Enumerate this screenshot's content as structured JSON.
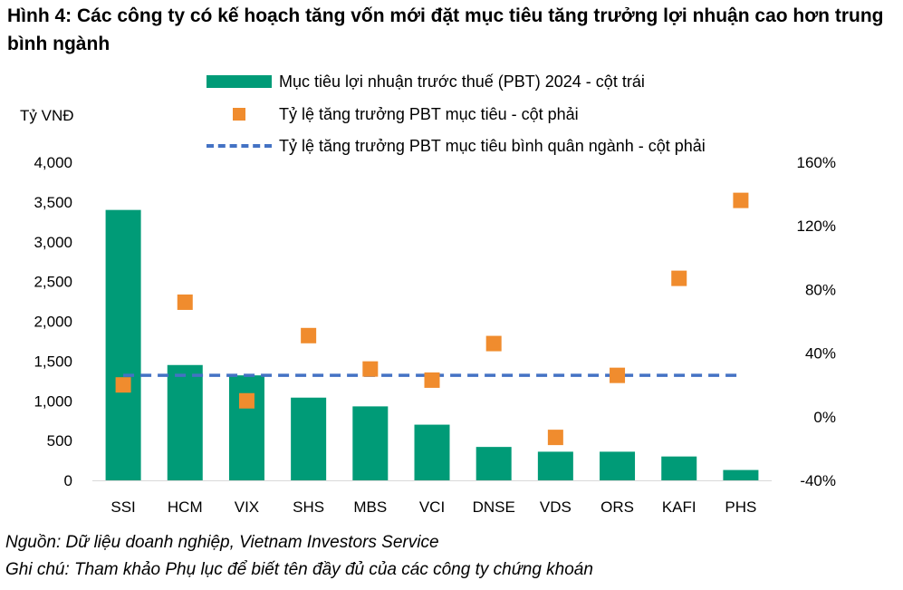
{
  "title": "Hình 4: Các công ty có kế hoạch tăng vốn mới đặt mục tiêu tăng trưởng lợi nhuận cao hơn trung bình ngành",
  "notes": {
    "source": "Nguồn: Dữ liệu doanh nghiệp, Vietnam Investors Service",
    "remark": "Ghi chú: Tham khảo Phụ lục để biết tên đầy đủ của các công ty chứng khoán"
  },
  "chart_data": {
    "type": "bar",
    "categories": [
      "SSI",
      "HCM",
      "VIX",
      "SHS",
      "MBS",
      "VCI",
      "DNSE",
      "VDS",
      "ORS",
      "KAFI",
      "PHS"
    ],
    "ylabel": "Tỷ VNĐ",
    "ylim": [
      0,
      4000
    ],
    "yticks": [
      "0",
      "500",
      "1,000",
      "1,500",
      "2,000",
      "2,500",
      "3,000",
      "3,500",
      "4,000"
    ],
    "y2lim": [
      -40,
      160
    ],
    "y2ticks": [
      "-40%",
      "0%",
      "40%",
      "80%",
      "120%",
      "160%"
    ],
    "legend_position": "top",
    "grid": false,
    "series": [
      {
        "name": "Mục tiêu lợi nhuận trước thuế (PBT) 2024 - cột trái",
        "kind": "bar",
        "axis": "left",
        "values": [
          3400,
          1450,
          1320,
          1040,
          930,
          700,
          420,
          360,
          360,
          300,
          130
        ]
      },
      {
        "name": "Tỷ lệ tăng trưởng PBT mục tiêu - cột phải",
        "kind": "marker",
        "axis": "right",
        "values": [
          20,
          72,
          10,
          51,
          30,
          23,
          46,
          -13,
          26,
          87,
          136
        ]
      },
      {
        "name": "Tỷ lệ tăng trưởng PBT mục tiêu bình quân ngành - cột phải",
        "kind": "dashed-line",
        "axis": "right",
        "value": 26
      }
    ],
    "colors": {
      "bar": "#009B77",
      "marker": "#F08C2E",
      "line": "#4472C4",
      "axis": "#D9D9D9"
    }
  }
}
